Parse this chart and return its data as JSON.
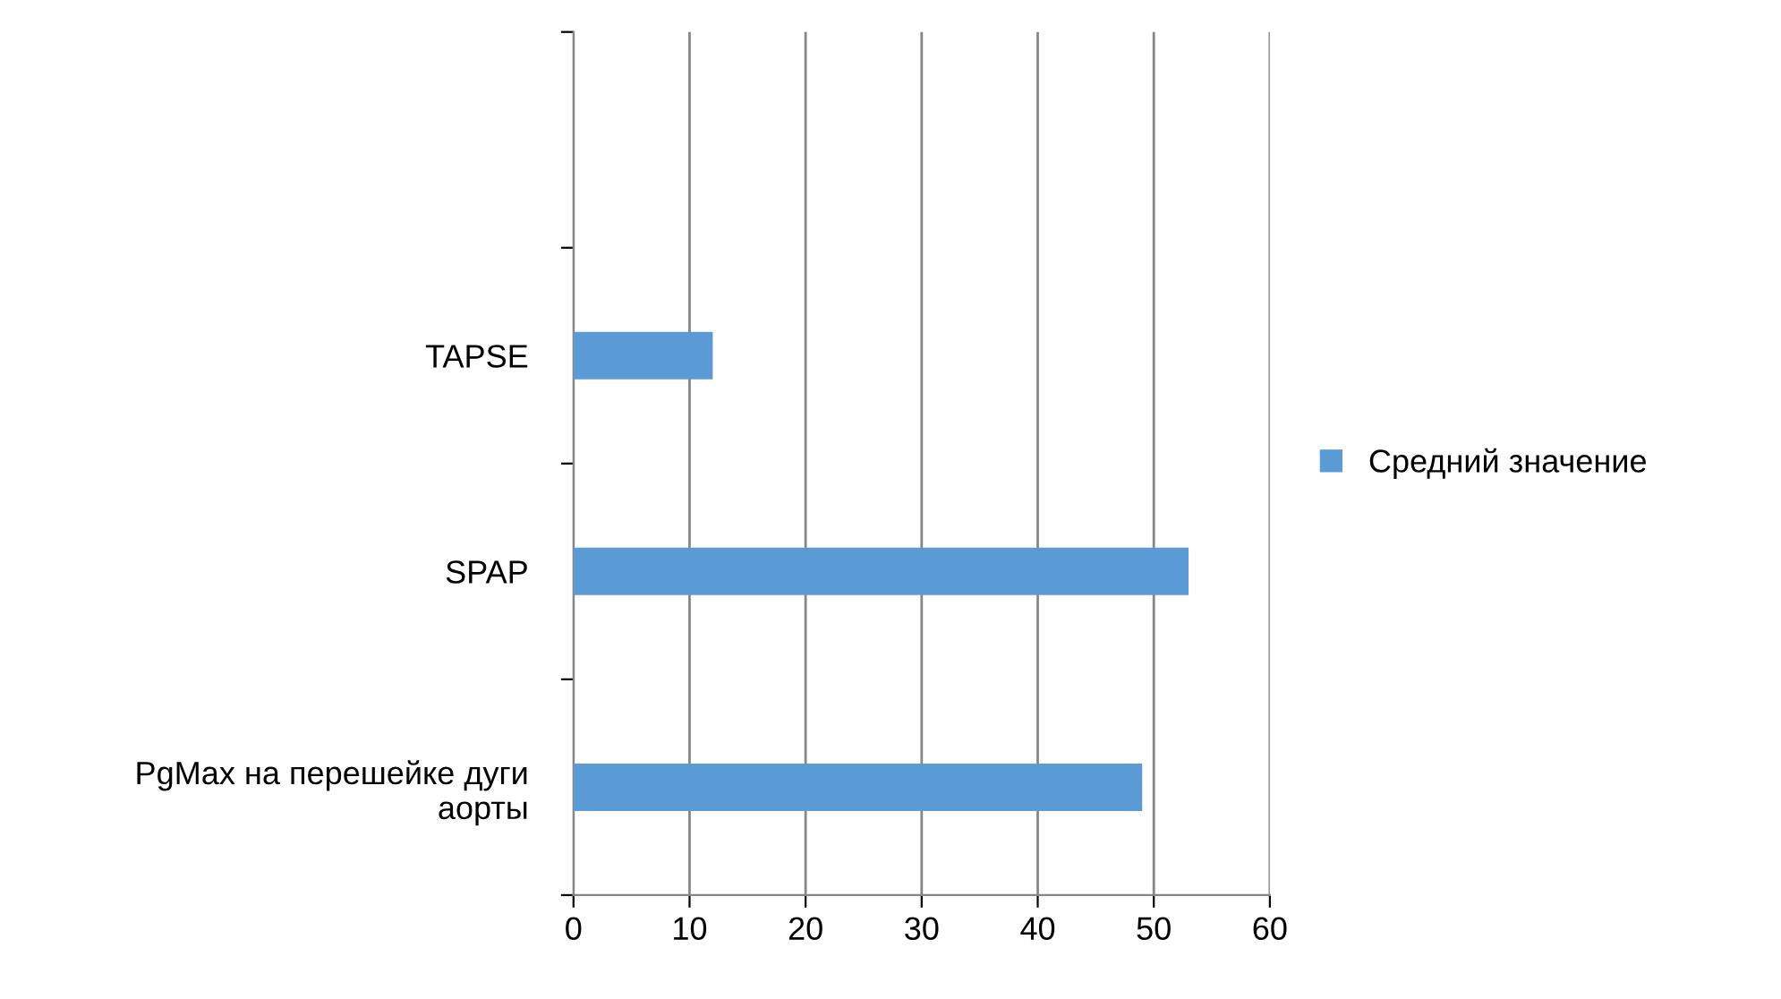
{
  "chart_data": {
    "type": "bar",
    "orientation": "horizontal",
    "categories": [
      null,
      "TAPSE",
      "SPAP",
      "PgMax на перешейке дуги\nаорты"
    ],
    "series": [
      {
        "name": "Средний значение",
        "color": "#5b9bd5",
        "values": [
          null,
          12,
          53,
          49
        ]
      }
    ],
    "xlim": [
      0,
      60
    ],
    "xticks": [
      0,
      10,
      20,
      30,
      40,
      50,
      60
    ],
    "grid": "x",
    "legend": "right"
  }
}
